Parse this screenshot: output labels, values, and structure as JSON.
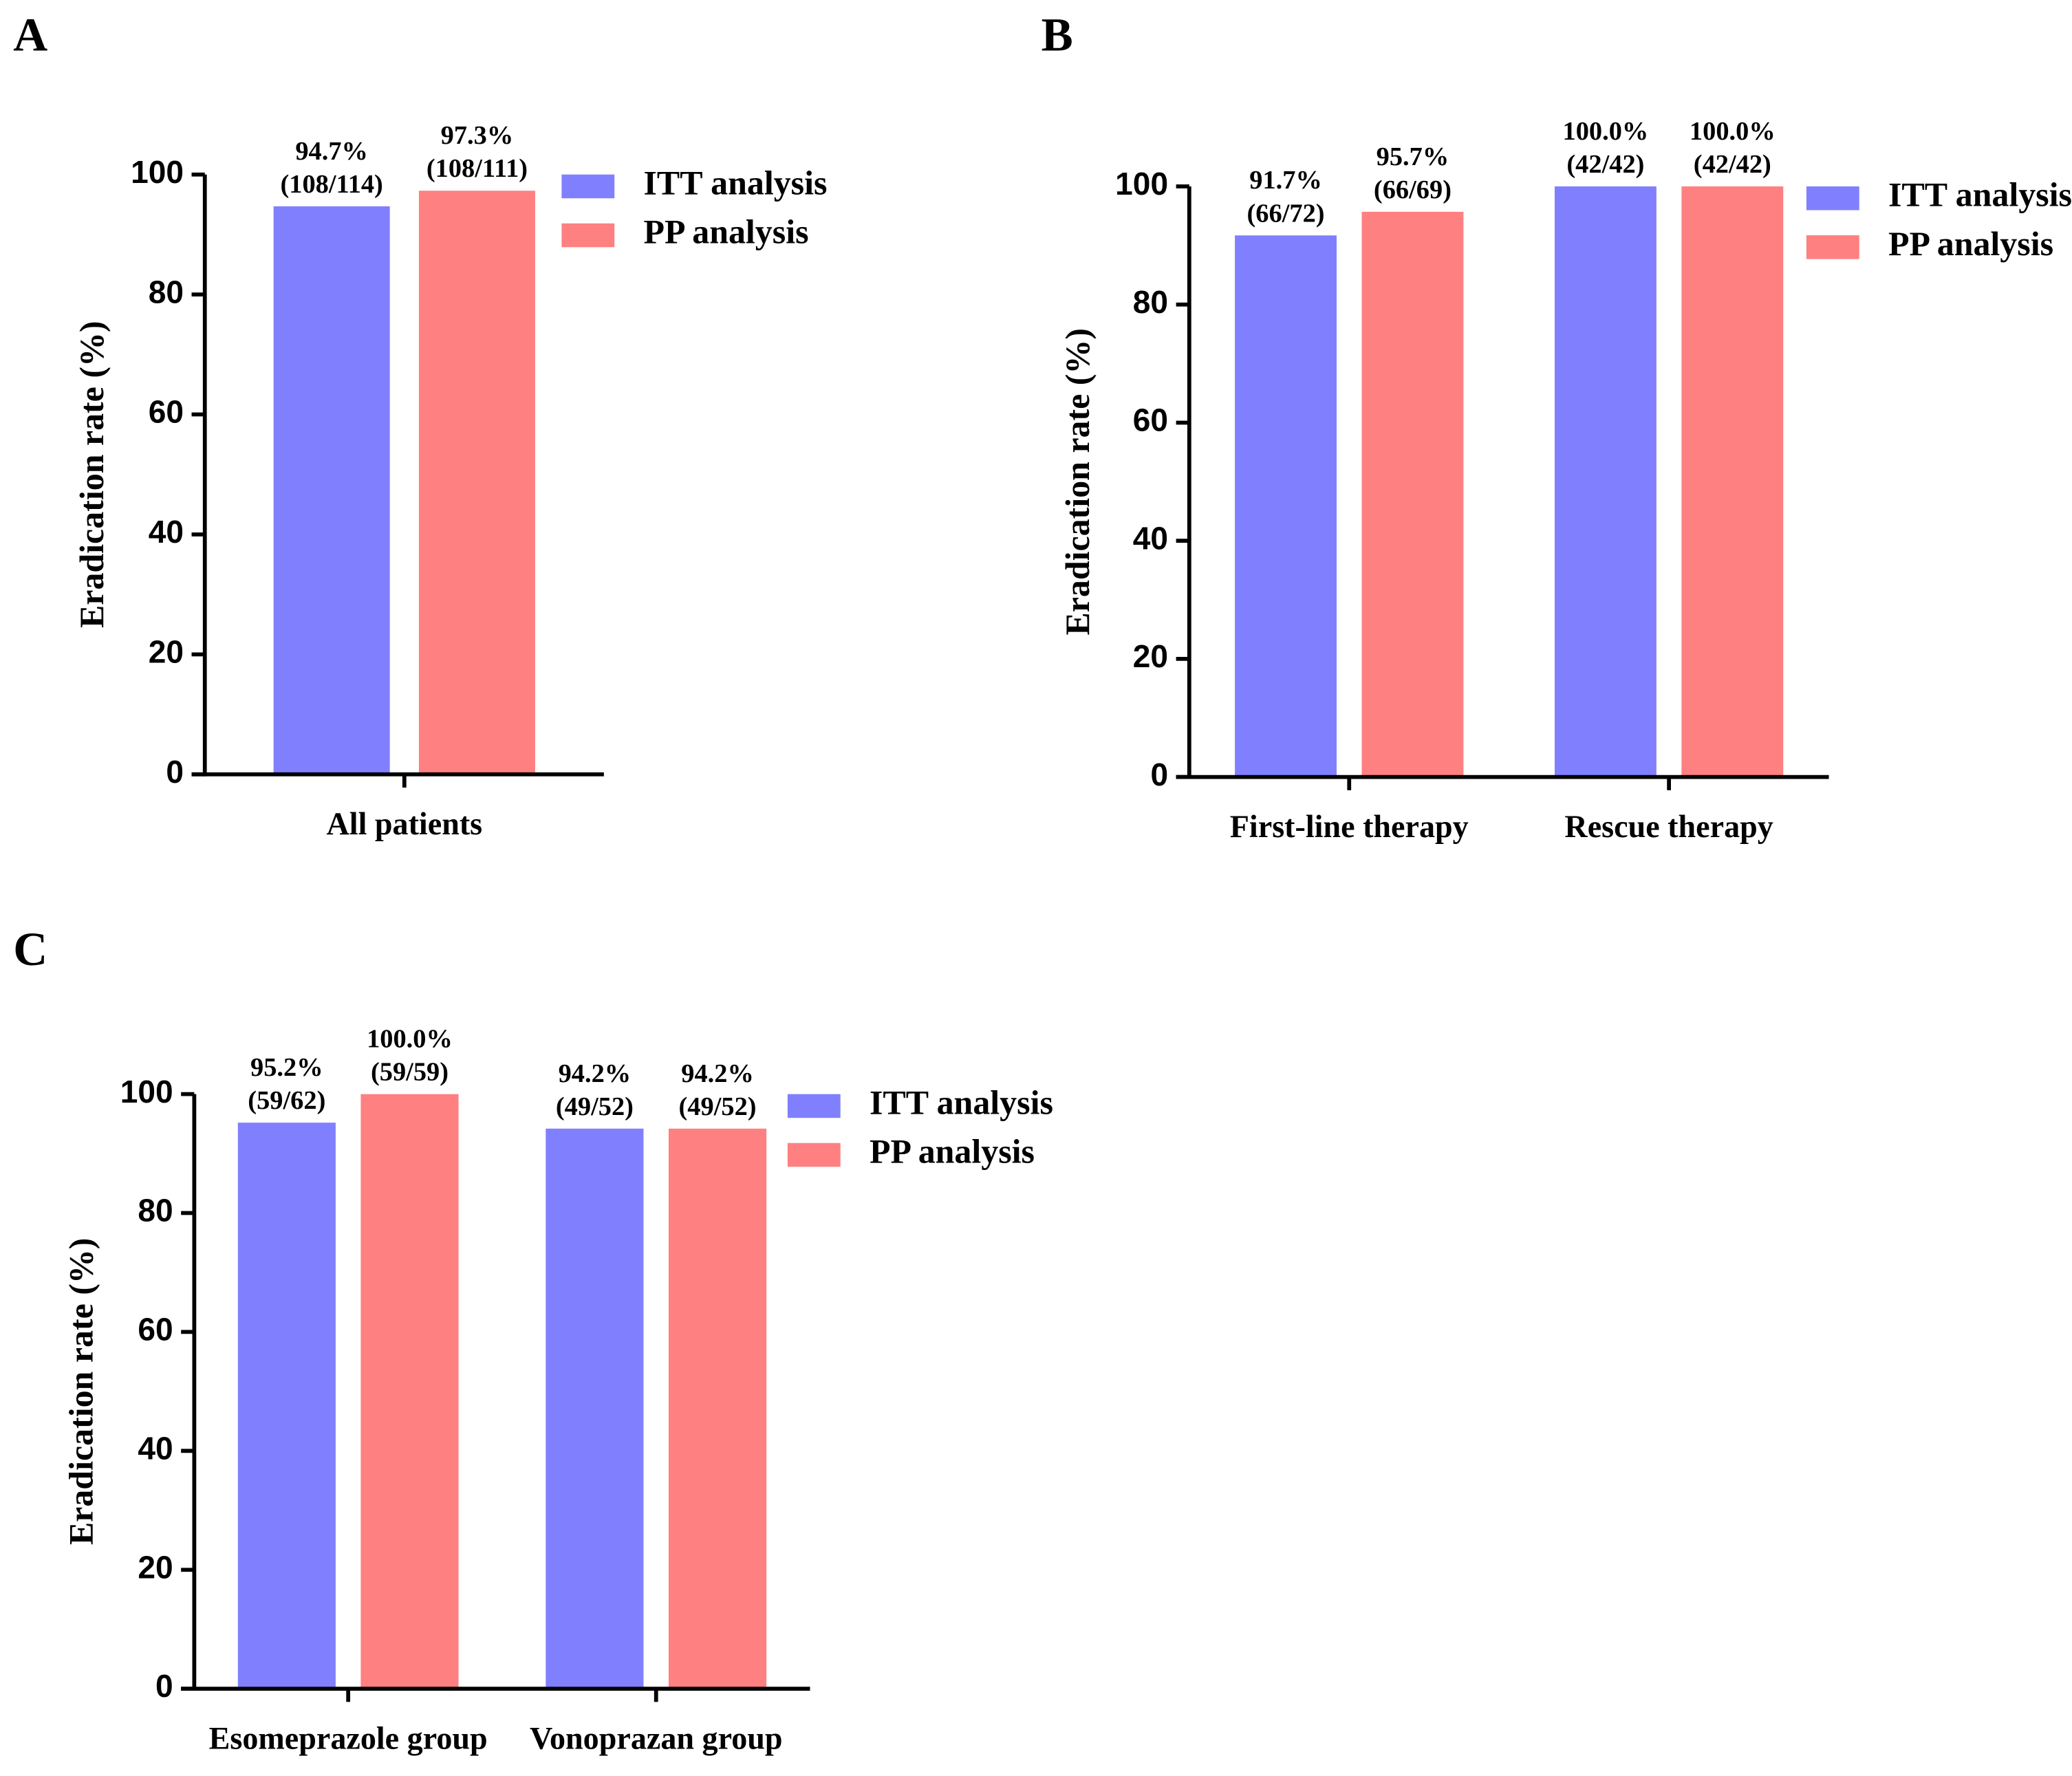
{
  "chart_data": [
    {
      "type": "bar",
      "panel_label": "A",
      "ylabel": "Eradication rate (%)",
      "categories": [
        "All patients"
      ],
      "series": [
        {
          "name": "ITT analysis",
          "color": "#8080ff",
          "values": [
            94.7
          ],
          "value_labels": [
            "94.7%"
          ],
          "counts": [
            "(108/114)"
          ]
        },
        {
          "name": "PP analysis",
          "color": "#ff8080",
          "values": [
            97.3
          ],
          "value_labels": [
            "97.3%"
          ],
          "counts": [
            "(108/111)"
          ]
        }
      ],
      "ylim": [
        0,
        100
      ],
      "yticks": [
        0,
        20,
        40,
        60,
        80,
        100
      ],
      "grid": false
    },
    {
      "type": "bar",
      "panel_label": "B",
      "ylabel": "Eradication rate (%)",
      "categories": [
        "First-line therapy",
        "Rescue therapy"
      ],
      "series": [
        {
          "name": "ITT analysis",
          "color": "#8080ff",
          "values": [
            91.7,
            100.0
          ],
          "value_labels": [
            "91.7%",
            "100.0%"
          ],
          "counts": [
            "(66/72)",
            "(42/42)"
          ]
        },
        {
          "name": "PP analysis",
          "color": "#ff8080",
          "values": [
            95.7,
            100.0
          ],
          "value_labels": [
            "95.7%",
            "100.0%"
          ],
          "counts": [
            "(66/69)",
            "(42/42)"
          ]
        }
      ],
      "ylim": [
        0,
        100
      ],
      "yticks": [
        0,
        20,
        40,
        60,
        80,
        100
      ],
      "grid": false
    },
    {
      "type": "bar",
      "panel_label": "C",
      "ylabel": "Eradication rate (%)",
      "categories": [
        "Esomeprazole group",
        "Vonoprazan group"
      ],
      "series": [
        {
          "name": "ITT analysis",
          "color": "#8080ff",
          "values": [
            95.2,
            94.2
          ],
          "value_labels": [
            "95.2%",
            "94.2%"
          ],
          "counts": [
            "(59/62)",
            "(49/52)"
          ]
        },
        {
          "name": "PP analysis",
          "color": "#ff8080",
          "values": [
            100.0,
            94.2
          ],
          "value_labels": [
            "100.0%",
            "94.2%"
          ],
          "counts": [
            "(59/59)",
            "(49/52)"
          ]
        }
      ],
      "ylim": [
        0,
        100
      ],
      "yticks": [
        0,
        20,
        40,
        60,
        80,
        100
      ],
      "grid": false
    }
  ]
}
